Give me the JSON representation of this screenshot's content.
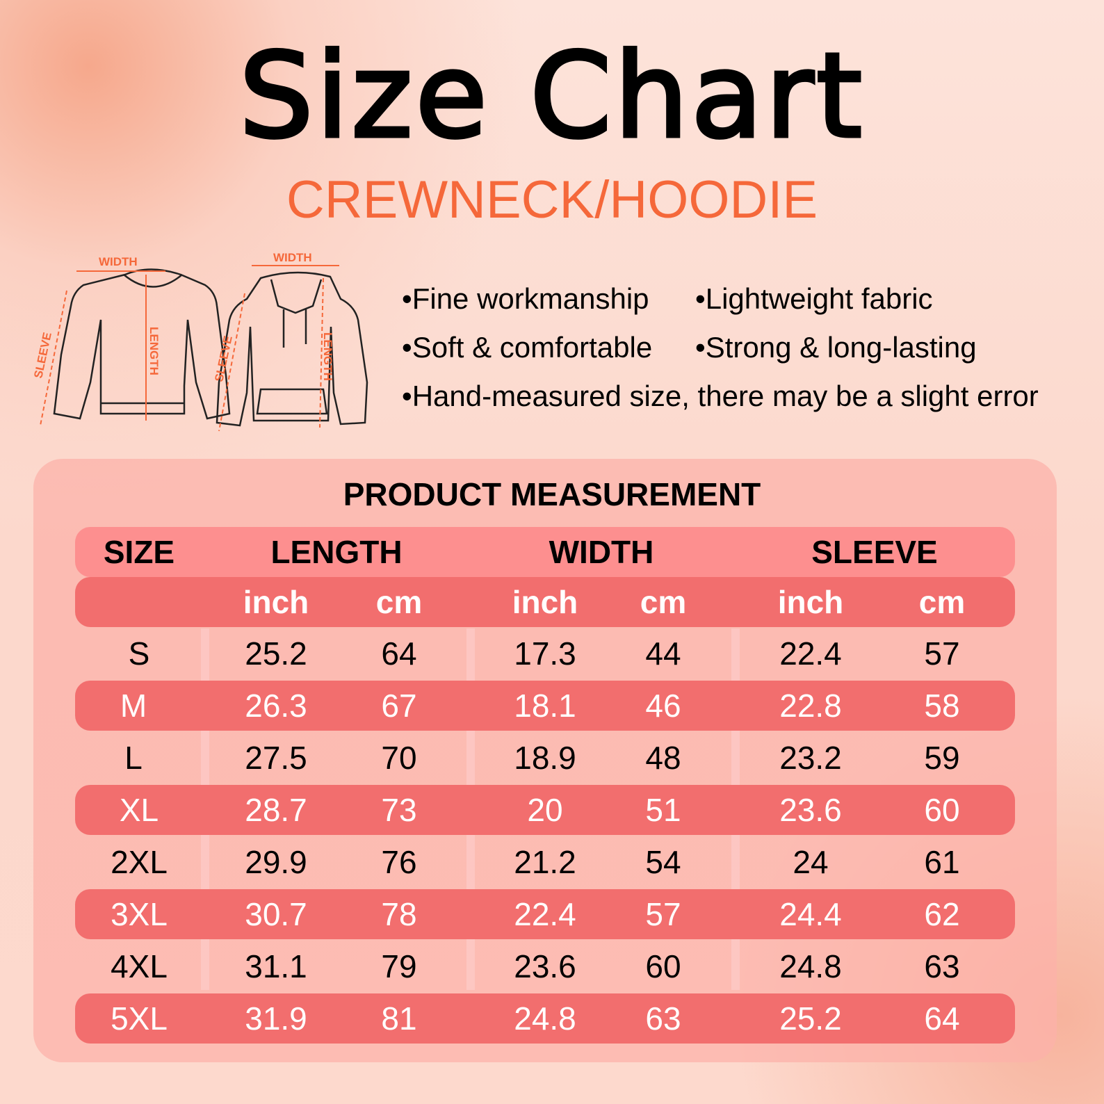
{
  "title": "Size Chart",
  "subtitle": "CREWNECK/HOODIE",
  "diagram": {
    "crewneck": {
      "width": "WIDTH",
      "length": "LENGTH",
      "sleeve": "SLEEVE"
    },
    "hoodie": {
      "width": "WIDTH",
      "length": "LENGTH",
      "sleeve": "SLEEVE"
    }
  },
  "features": [
    "•Fine workmanship",
    "•Lightweight fabric",
    "•Soft & comfortable",
    "•Strong & long-lasting",
    "•Hand-measured size, there may be a slight error"
  ],
  "table": {
    "title": "PRODUCT MEASUREMENT",
    "headers": [
      "SIZE",
      "LENGTH",
      "WIDTH",
      "SLEEVE"
    ],
    "units": [
      "inch",
      "cm",
      "inch",
      "cm",
      "inch",
      "cm"
    ],
    "rows": [
      [
        "S",
        "25.2",
        "64",
        "17.3",
        "44",
        "22.4",
        "57"
      ],
      [
        "M",
        "26.3",
        "67",
        "18.1",
        "46",
        "22.8",
        "58"
      ],
      [
        "L",
        "27.5",
        "70",
        "18.9",
        "48",
        "23.2",
        "59"
      ],
      [
        "XL",
        "28.7",
        "73",
        "20",
        "51",
        "23.6",
        "60"
      ],
      [
        "2XL",
        "29.9",
        "76",
        "21.2",
        "54",
        "24",
        "61"
      ],
      [
        "3XL",
        "30.7",
        "78",
        "22.4",
        "57",
        "24.4",
        "62"
      ],
      [
        "4XL",
        "31.1",
        "79",
        "23.6",
        "60",
        "24.8",
        "63"
      ],
      [
        "5XL",
        "31.9",
        "81",
        "24.8",
        "63",
        "25.2",
        "64"
      ]
    ]
  },
  "colors": {
    "accent": "#f5683a",
    "header": "#fd8f8f",
    "band": "#f26e6e"
  }
}
